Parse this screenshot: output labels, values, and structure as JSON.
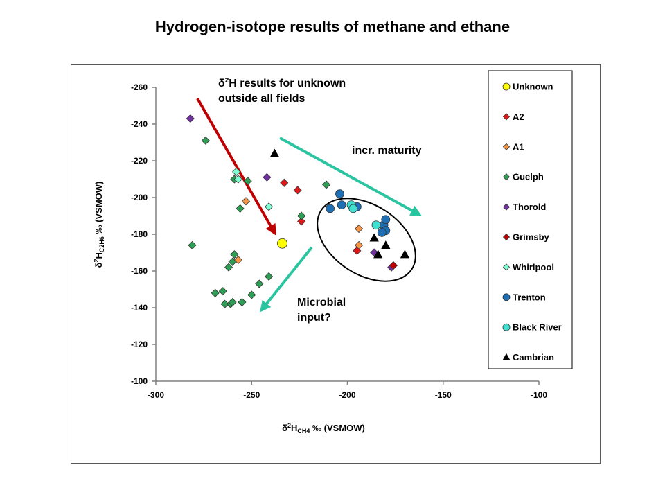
{
  "chart_data": {
    "type": "scatter",
    "title": "Hydrogen-isotope results of methane and ethane",
    "xlabel": {
      "prefix": "δ",
      "sup": "2",
      "main": "H",
      "sub": "CH4",
      "suffix": " ‰ (VSMOW)"
    },
    "ylabel": {
      "prefix": "δ",
      "sup": "2",
      "main": "H",
      "sub": "C2H6",
      "suffix": " ‰ (VSMOW)"
    },
    "xlim": [
      -300,
      -100
    ],
    "ylim": [
      -260,
      -100
    ],
    "y_inverted": true,
    "xticks": [
      -300,
      -250,
      -200,
      -150,
      -100
    ],
    "yticks": [
      -260,
      -240,
      -220,
      -200,
      -180,
      -160,
      -140,
      -120,
      -100
    ],
    "grid": false,
    "legend_position": "right",
    "series": [
      {
        "name": "Unknown",
        "marker": "circle",
        "color": "#FFFF00",
        "points": [
          [
            -234,
            -175
          ]
        ]
      },
      {
        "name": "A2",
        "marker": "diamond",
        "color": "#E01818",
        "points": [
          [
            -233,
            -208
          ],
          [
            -226,
            -204
          ],
          [
            -224,
            -187
          ],
          [
            -195,
            -171
          ],
          [
            -176,
            -163
          ]
        ]
      },
      {
        "name": "A1",
        "marker": "diamond",
        "color": "#F79646",
        "points": [
          [
            -253,
            -198
          ],
          [
            -257,
            -166
          ],
          [
            -194,
            -183
          ],
          [
            -194,
            -174
          ]
        ]
      },
      {
        "name": "Guelph",
        "marker": "diamond",
        "color": "#2E9E55",
        "points": [
          [
            -274,
            -231
          ],
          [
            -281,
            -174
          ],
          [
            -259,
            -210
          ],
          [
            -252,
            -209
          ],
          [
            -256,
            -194
          ],
          [
            -224,
            -190
          ],
          [
            -211,
            -207
          ],
          [
            -260,
            -165
          ],
          [
            -262,
            -162
          ],
          [
            -259,
            -169
          ],
          [
            -241,
            -157
          ],
          [
            -246,
            -153
          ],
          [
            -250,
            -147
          ],
          [
            -269,
            -148
          ],
          [
            -265,
            -149
          ],
          [
            -264,
            -142
          ],
          [
            -261,
            -142
          ],
          [
            -260,
            -143
          ],
          [
            -255,
            -143
          ]
        ]
      },
      {
        "name": "Thorold",
        "marker": "diamond",
        "color": "#7030A0",
        "points": [
          [
            -282,
            -243
          ],
          [
            -242,
            -211
          ],
          [
            -186,
            -170
          ],
          [
            -177,
            -162
          ]
        ]
      },
      {
        "name": "Grimsby",
        "marker": "diamond",
        "color": "#C00000",
        "points": [
          [
            -176,
            -163
          ]
        ]
      },
      {
        "name": "Whirlpool",
        "marker": "diamond",
        "color": "#7FFFD4",
        "points": [
          [
            -258,
            -214
          ],
          [
            -257,
            -210
          ],
          [
            -241,
            -195
          ]
        ]
      },
      {
        "name": "Trenton",
        "marker": "circle",
        "color": "#1F6FB5",
        "points": [
          [
            -204,
            -202
          ],
          [
            -203,
            -196
          ],
          [
            -209,
            -194
          ],
          [
            -195,
            -195
          ],
          [
            -181,
            -185
          ],
          [
            -180,
            -182
          ],
          [
            -180,
            -188
          ],
          [
            -182,
            -181
          ]
        ]
      },
      {
        "name": "Black River",
        "marker": "circle",
        "color": "#40E0D0",
        "points": [
          [
            -198,
            -196
          ],
          [
            -197,
            -194
          ],
          [
            -185,
            -185
          ]
        ]
      },
      {
        "name": "Cambrian",
        "marker": "triangle",
        "color": "#000000",
        "points": [
          [
            -238,
            -224
          ],
          [
            -186,
            -178
          ],
          [
            -184,
            -169
          ],
          [
            -180,
            -174
          ],
          [
            -170,
            -169
          ]
        ]
      }
    ],
    "annotations": [
      {
        "text_parts": {
          "prefix": "δ",
          "sup": "2",
          "rest": "H results for unknown"
        },
        "line2": "outside all fields"
      },
      {
        "text": "incr. maturity"
      },
      {
        "line1": "Microbial",
        "line2": "input?"
      }
    ]
  }
}
